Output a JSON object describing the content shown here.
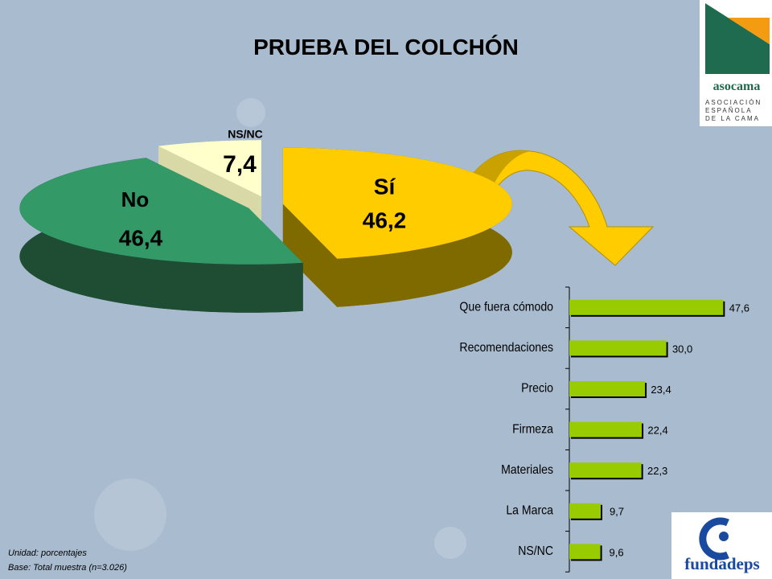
{
  "title": "PRUEBA DEL COLCHÓN",
  "chart_data": [
    {
      "type": "pie",
      "categories": [
        "No",
        "Sí",
        "NS/NC"
      ],
      "values": [
        46.4,
        46.2,
        7.4
      ],
      "value_labels": [
        "46,4",
        "46,2",
        "7,4"
      ],
      "colors": [
        "#339966",
        "#ffcc00",
        "#ffffcc"
      ],
      "side_colors": [
        "#1e4d34",
        "#7f6a00",
        "#d9d9a8"
      ]
    },
    {
      "type": "hbar",
      "categories": [
        "Que fuera cómodo",
        "Recomendaciones",
        "Precio",
        "Firmeza",
        "Materiales",
        "La Marca",
        "NS/NC"
      ],
      "values": [
        47.6,
        30.0,
        23.4,
        22.4,
        22.3,
        9.7,
        9.6
      ],
      "value_labels": [
        "47,6",
        "30,0",
        "23,4",
        "22,4",
        "22,3",
        "9,7",
        "9,6"
      ],
      "color": "#99cc00",
      "xlim": [
        0,
        50
      ]
    }
  ],
  "notes": [
    "Unidad: porcentajes",
    "Base: Total muestra (n=3.026)"
  ],
  "logos": {
    "asocama": "asocama",
    "asocama_sub": [
      "ASOCIACIÓN",
      "ESPAÑOLA",
      "DE LA CAMA"
    ],
    "fundadeps": "fundadeps"
  }
}
